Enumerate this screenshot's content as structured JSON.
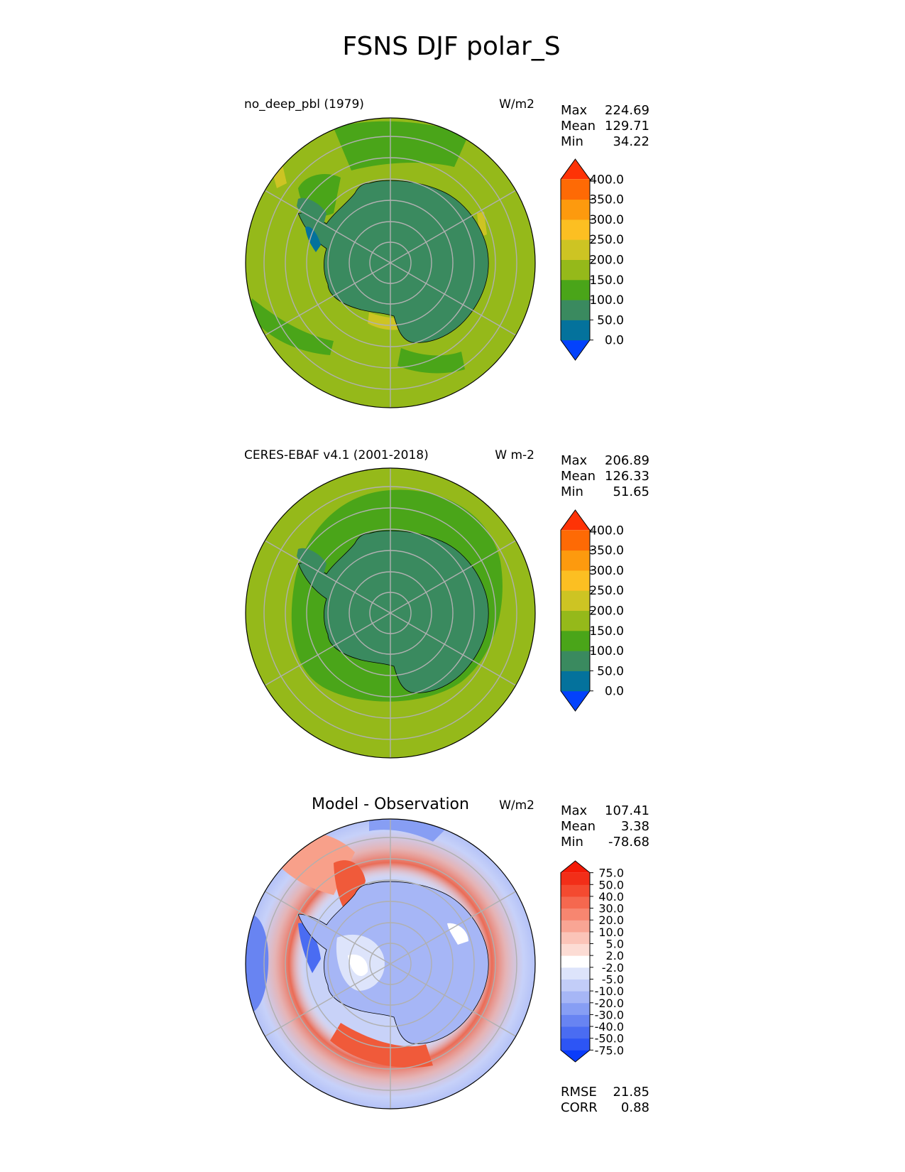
{
  "suptitle": "FSNS DJF polar_S",
  "panels": [
    {
      "id": "test",
      "title_left": "no_deep_pbl (1979)",
      "title_center": "",
      "units": "W/m2",
      "stats": [
        {
          "label": "Max",
          "value": "224.69"
        },
        {
          "label": "Mean",
          "value": "129.71"
        },
        {
          "label": "Min",
          "value": "34.22"
        }
      ],
      "colorbar": {
        "levels": [
          "0.0",
          "50.0",
          "100.0",
          "150.0",
          "200.0",
          "250.0",
          "300.0",
          "350.0",
          "400.0"
        ],
        "colors": [
          "#0342fc",
          "#04729c",
          "#3a8a5f",
          "#4aa519",
          "#95b91a",
          "#cdc423",
          "#fcbf22",
          "#fd9a0e",
          "#fe6a05",
          "#fe3306"
        ]
      }
    },
    {
      "id": "reference",
      "title_left": "CERES-EBAF v4.1 (2001-2018)",
      "title_center": "",
      "units": "W m-2",
      "stats": [
        {
          "label": "Max",
          "value": "206.89"
        },
        {
          "label": "Mean",
          "value": "126.33"
        },
        {
          "label": "Min",
          "value": "51.65"
        }
      ],
      "colorbar": {
        "levels": [
          "0.0",
          "50.0",
          "100.0",
          "150.0",
          "200.0",
          "250.0",
          "300.0",
          "350.0",
          "400.0"
        ],
        "colors": [
          "#0342fc",
          "#04729c",
          "#3a8a5f",
          "#4aa519",
          "#95b91a",
          "#cdc423",
          "#fcbf22",
          "#fd9a0e",
          "#fe6a05",
          "#fe3306"
        ]
      }
    },
    {
      "id": "diff",
      "title_left": "",
      "title_center": "Model - Observation",
      "units": "W/m2",
      "stats": [
        {
          "label": "Max",
          "value": "107.41"
        },
        {
          "label": "Mean",
          "value": "3.38"
        },
        {
          "label": "Min",
          "value": "-78.68"
        }
      ],
      "metrics": [
        {
          "label": "RMSE",
          "value": "21.85"
        },
        {
          "label": "CORR",
          "value": "0.88"
        }
      ],
      "colorbar": {
        "levels": [
          "-75.0",
          "-50.0",
          "-40.0",
          "-30.0",
          "-20.0",
          "-10.0",
          "-5.0",
          "-2.0",
          "2.0",
          "5.0",
          "10.0",
          "20.0",
          "30.0",
          "40.0",
          "50.0",
          "75.0"
        ],
        "colors": [
          "#0a3cfa",
          "#2d55f5",
          "#4a6cf2",
          "#6884f2",
          "#879ef4",
          "#a6b6f6",
          "#c2cdf8",
          "#dde4fb",
          "#ffffff",
          "#fcdcd4",
          "#fbc4b8",
          "#f9a594",
          "#f78670",
          "#f5684f",
          "#f44a30",
          "#f22e18",
          "#f31a06"
        ]
      }
    }
  ],
  "chart_data": [
    {
      "type": "heatmap",
      "projection": "south-polar-stereographic",
      "title": "no_deep_pbl (1979)",
      "units": "W/m2",
      "max": 224.69,
      "mean": 129.71,
      "min": 34.22,
      "levels": [
        0,
        50,
        100,
        150,
        200,
        250,
        300,
        350,
        400
      ],
      "colorbar_extend": "both"
    },
    {
      "type": "heatmap",
      "projection": "south-polar-stereographic",
      "title": "CERES-EBAF v4.1 (2001-2018)",
      "units": "W m-2",
      "max": 206.89,
      "mean": 126.33,
      "min": 51.65,
      "levels": [
        0,
        50,
        100,
        150,
        200,
        250,
        300,
        350,
        400
      ],
      "colorbar_extend": "both"
    },
    {
      "type": "heatmap",
      "projection": "south-polar-stereographic",
      "title": "Model - Observation",
      "units": "W/m2",
      "max": 107.41,
      "mean": 3.38,
      "min": -78.68,
      "rmse": 21.85,
      "corr": 0.88,
      "levels": [
        -75,
        -50,
        -40,
        -30,
        -20,
        -10,
        -5,
        -2,
        2,
        5,
        10,
        20,
        30,
        40,
        50,
        75
      ],
      "colorbar_extend": "both"
    }
  ]
}
